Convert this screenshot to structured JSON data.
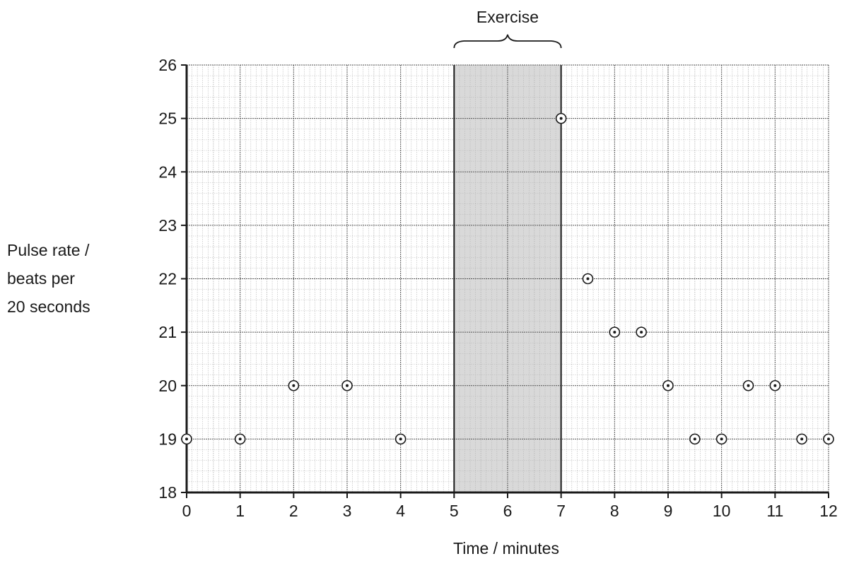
{
  "chart_data": {
    "type": "scatter",
    "title": "",
    "xlabel": "Time / minutes",
    "ylabel": [
      "Pulse rate /",
      "beats per",
      "20 seconds"
    ],
    "xlim": [
      0,
      12
    ],
    "ylim": [
      18,
      26
    ],
    "x_ticks": [
      0,
      1,
      2,
      3,
      4,
      5,
      6,
      7,
      8,
      9,
      10,
      11,
      12
    ],
    "y_ticks": [
      18,
      19,
      20,
      21,
      22,
      23,
      24,
      25,
      26
    ],
    "grid": true,
    "points": [
      {
        "x": 0,
        "y": 19
      },
      {
        "x": 1,
        "y": 19
      },
      {
        "x": 2,
        "y": 20
      },
      {
        "x": 3,
        "y": 20
      },
      {
        "x": 4,
        "y": 19
      },
      {
        "x": 7,
        "y": 25
      },
      {
        "x": 7.5,
        "y": 22
      },
      {
        "x": 8,
        "y": 21
      },
      {
        "x": 8.5,
        "y": 21
      },
      {
        "x": 9,
        "y": 20
      },
      {
        "x": 9.5,
        "y": 19
      },
      {
        "x": 10,
        "y": 19
      },
      {
        "x": 10.5,
        "y": 20
      },
      {
        "x": 11,
        "y": 20
      },
      {
        "x": 11.5,
        "y": 19
      },
      {
        "x": 12,
        "y": 19
      }
    ],
    "annotations": [
      {
        "label": "Exercise",
        "x_start": 5,
        "x_end": 7,
        "shaded": true
      }
    ],
    "colors": {
      "shade": "#d9d9d9",
      "grid_major": "#555555",
      "grid_minor": "#b5b5b5",
      "ink": "#1a1a1a"
    }
  }
}
